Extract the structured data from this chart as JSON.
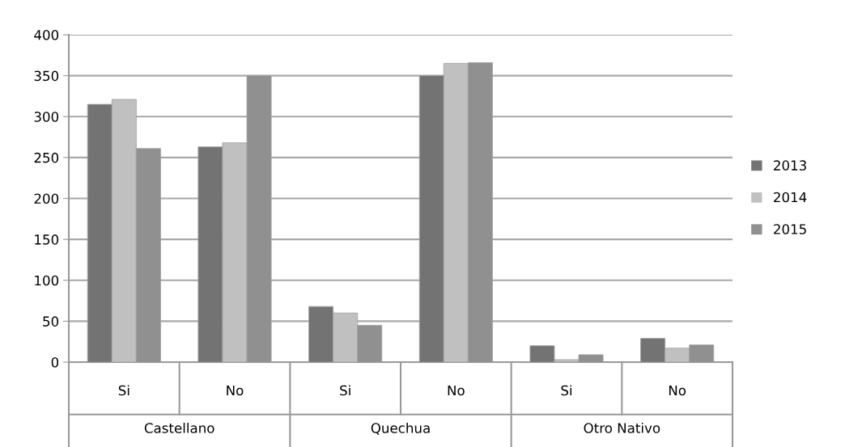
{
  "chart_data": {
    "type": "bar",
    "categories": [
      "Si",
      "No",
      "Si",
      "No",
      "Si",
      "No"
    ],
    "series": [
      {
        "name": "2013",
        "color": "#737373",
        "values": [
          315,
          263,
          68,
          350,
          20,
          29
        ]
      },
      {
        "name": "2014",
        "color": "#c0c0c0",
        "values": [
          321,
          268,
          60,
          365,
          3,
          17
        ]
      },
      {
        "name": "2015",
        "color": "#909090",
        "values": [
          261,
          350,
          45,
          366,
          9,
          21
        ]
      }
    ],
    "annotations": [
      "Castellano",
      "Quechua",
      "Otro Nativo"
    ],
    "ylim": [
      0,
      400
    ],
    "yticks": [
      0,
      50,
      100,
      150,
      200,
      250,
      300,
      350,
      400
    ],
    "grid": "y",
    "legend": "right"
  }
}
